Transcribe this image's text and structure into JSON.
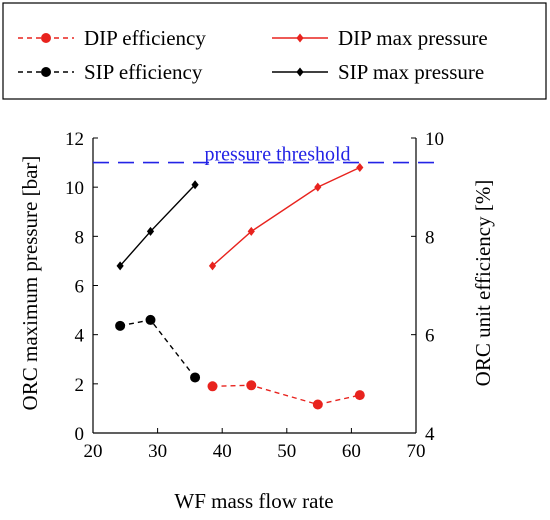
{
  "chart_data": {
    "type": "line",
    "xlabel": "WF mass flow rate",
    "ylabel_left": "ORC maximum pressure [bar]",
    "ylabel_right": "ORC unit efficiency [%]",
    "xlim": [
      20,
      70
    ],
    "ylim_left": [
      0,
      12
    ],
    "ylim_right": [
      4,
      10
    ],
    "x_ticks": [
      20,
      30,
      40,
      50,
      60,
      70
    ],
    "y_ticks_left": [
      0,
      2,
      4,
      6,
      8,
      10,
      12
    ],
    "y_ticks_right": [
      4,
      6,
      8,
      10
    ],
    "grid": false,
    "legend_placement": "top",
    "threshold": {
      "label": "pressure threshold",
      "value": 11,
      "axis": "left",
      "style": "dashed",
      "color": "#2323e6"
    },
    "series": [
      {
        "name": "DIP efficiency",
        "axis": "right",
        "marker": "circle",
        "line": "dashed",
        "color": "#e8231e",
        "x": [
          38.5,
          44.5,
          54.8,
          61.3
        ],
        "y": [
          4.95,
          4.97,
          4.58,
          4.77
        ]
      },
      {
        "name": "DIP max pressure",
        "axis": "left",
        "marker": "diamond",
        "line": "solid",
        "color": "#e8231e",
        "x": [
          38.5,
          44.5,
          54.8,
          61.3
        ],
        "y": [
          6.8,
          8.2,
          10.0,
          10.8
        ]
      },
      {
        "name": "SIP efficiency",
        "axis": "right",
        "marker": "circle",
        "line": "dashed",
        "color": "#000000",
        "x": [
          24.2,
          28.9,
          35.8
        ],
        "y": [
          6.18,
          6.3,
          5.13
        ]
      },
      {
        "name": "SIP max pressure",
        "axis": "left",
        "marker": "diamond",
        "line": "solid",
        "color": "#000000",
        "x": [
          24.2,
          28.9,
          35.8
        ],
        "y": [
          6.8,
          8.2,
          10.1
        ]
      }
    ]
  }
}
